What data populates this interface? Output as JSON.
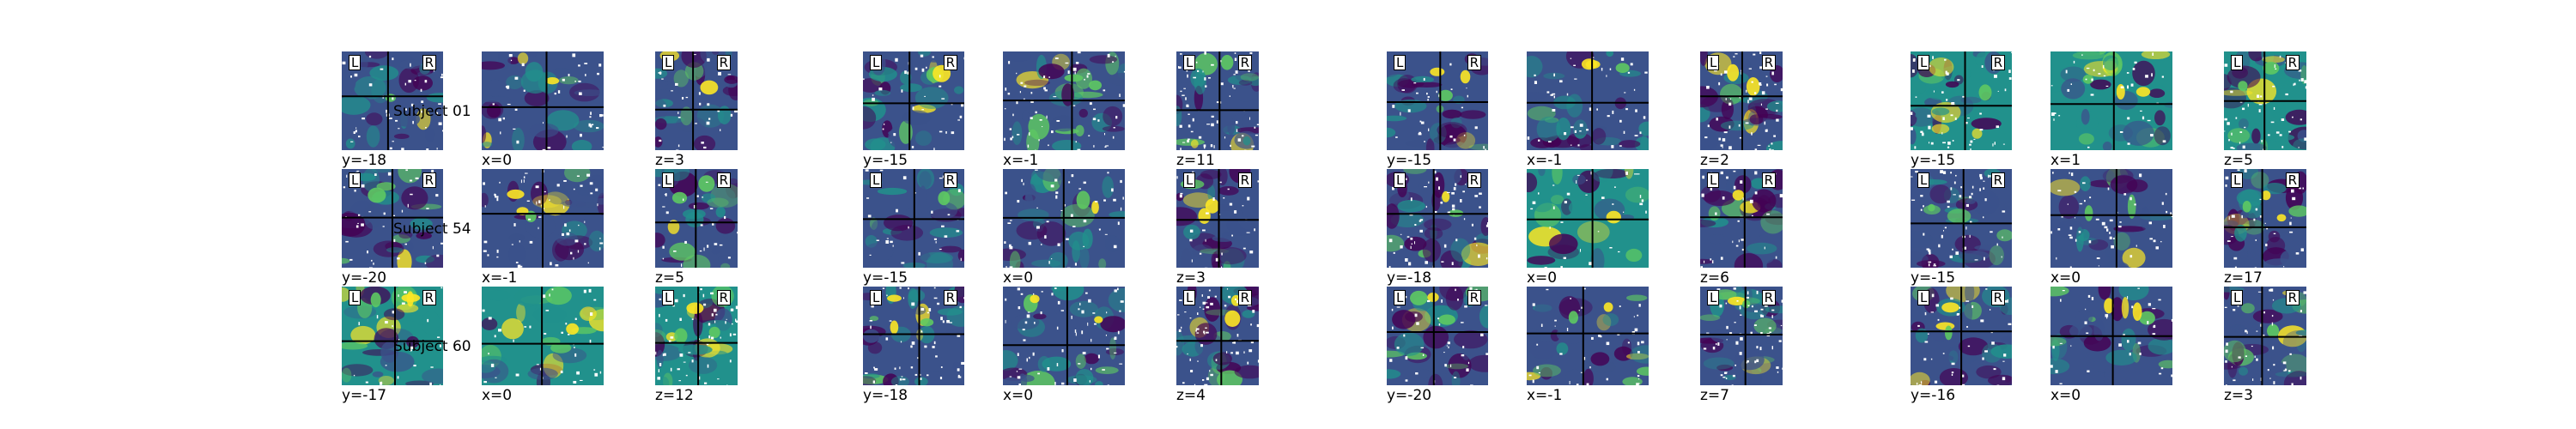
{
  "colors": {
    "background": "#ffffff",
    "cmap_low": "#440154",
    "cmap_mid_low": "#3b528b",
    "cmap_mid": "#21918c",
    "cmap_mid_high": "#5ec962",
    "cmap_high": "#fde725",
    "crosshair": "#000000"
  },
  "orientation_labels": {
    "left": "L",
    "right": "R"
  },
  "groups": [
    {
      "rows": [
        {
          "subject": "Subject 01",
          "cuts": [
            "y=-18",
            "x=0",
            "z=3"
          ]
        },
        {
          "subject": "Subject 54",
          "cuts": [
            "y=-20",
            "x=-1",
            "z=5"
          ]
        },
        {
          "subject": "Subject 60",
          "cuts": [
            "y=-17",
            "x=0",
            "z=12"
          ]
        }
      ]
    },
    {
      "rows": [
        {
          "cuts": [
            "y=-15",
            "x=-1",
            "z=11"
          ]
        },
        {
          "cuts": [
            "y=-15",
            "x=0",
            "z=3"
          ]
        },
        {
          "cuts": [
            "y=-18",
            "x=0",
            "z=4"
          ]
        }
      ]
    },
    {
      "rows": [
        {
          "cuts": [
            "y=-15",
            "x=-1",
            "z=2"
          ]
        },
        {
          "cuts": [
            "y=-18",
            "x=0",
            "z=6"
          ]
        },
        {
          "cuts": [
            "y=-20",
            "x=-1",
            "z=7"
          ]
        }
      ]
    },
    {
      "rows": [
        {
          "cuts": [
            "y=-15",
            "x=1",
            "z=5"
          ]
        },
        {
          "cuts": [
            "y=-15",
            "x=0",
            "z=17"
          ]
        },
        {
          "cuts": [
            "y=-16",
            "x=0",
            "z=3"
          ]
        }
      ]
    }
  ]
}
